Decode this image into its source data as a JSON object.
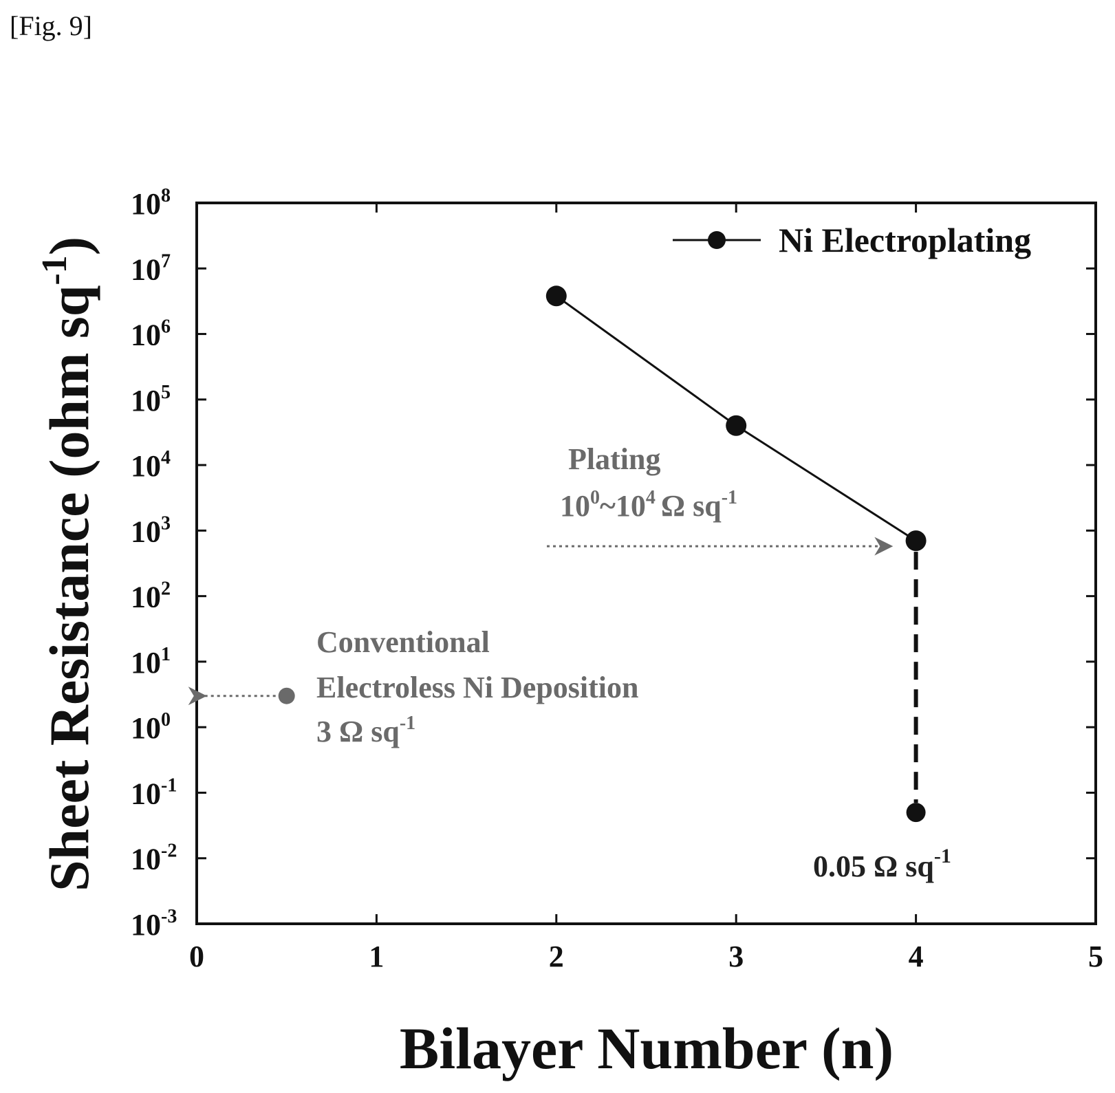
{
  "figure_label": "[Fig. 9]",
  "chart_data": {
    "type": "line",
    "xlabel": "Bilayer Number (n)",
    "ylabel": {
      "main": "Sheet Resistance (ohm sq",
      "sup": "-1",
      "close": ")"
    },
    "xlim": [
      0,
      5
    ],
    "ylim": [
      0.001,
      100000000
    ],
    "yscale": "log",
    "xticks": [
      "0",
      "1",
      "2",
      "3",
      "4",
      "5"
    ],
    "yticks": [
      {
        "base": "10",
        "exp": "8"
      },
      {
        "base": "10",
        "exp": "7"
      },
      {
        "base": "10",
        "exp": "6"
      },
      {
        "base": "10",
        "exp": "5"
      },
      {
        "base": "10",
        "exp": "4"
      },
      {
        "base": "10",
        "exp": "3"
      },
      {
        "base": "10",
        "exp": "2"
      },
      {
        "base": "10",
        "exp": "1"
      },
      {
        "base": "10",
        "exp": "0"
      },
      {
        "base": "10",
        "exp": "-1"
      },
      {
        "base": "10",
        "exp": "-2"
      },
      {
        "base": "10",
        "exp": "-3"
      }
    ],
    "grid": false,
    "legend_position": "top-right",
    "series": [
      {
        "name": "Ni Electroplating",
        "x": [
          2,
          3,
          4
        ],
        "y": [
          3800000,
          40000,
          700
        ],
        "color": "#111111"
      }
    ],
    "extra_points": {
      "electroplated_final": {
        "x": 4,
        "y": 0.05
      },
      "electroless_reference": {
        "x": 0.5,
        "y": 3
      }
    },
    "annotations": {
      "plating": {
        "title": "Plating",
        "range": {
          "a": "10",
          "a_exp": "0",
          "sep": "~",
          "b": "10",
          "b_exp": "4",
          "unit": "Ω sq",
          "unit_exp": "-1"
        }
      },
      "conventional": {
        "line1": "Conventional",
        "line2": "Electroless Ni Deposition",
        "value": "3 Ω sq",
        "value_exp": "-1"
      },
      "final": {
        "value": "0.05 Ω sq",
        "value_exp": "-1"
      }
    },
    "colors": {
      "line": "#111111",
      "annotation_gray": "#6a6a6a",
      "axis": "#111111"
    }
  }
}
